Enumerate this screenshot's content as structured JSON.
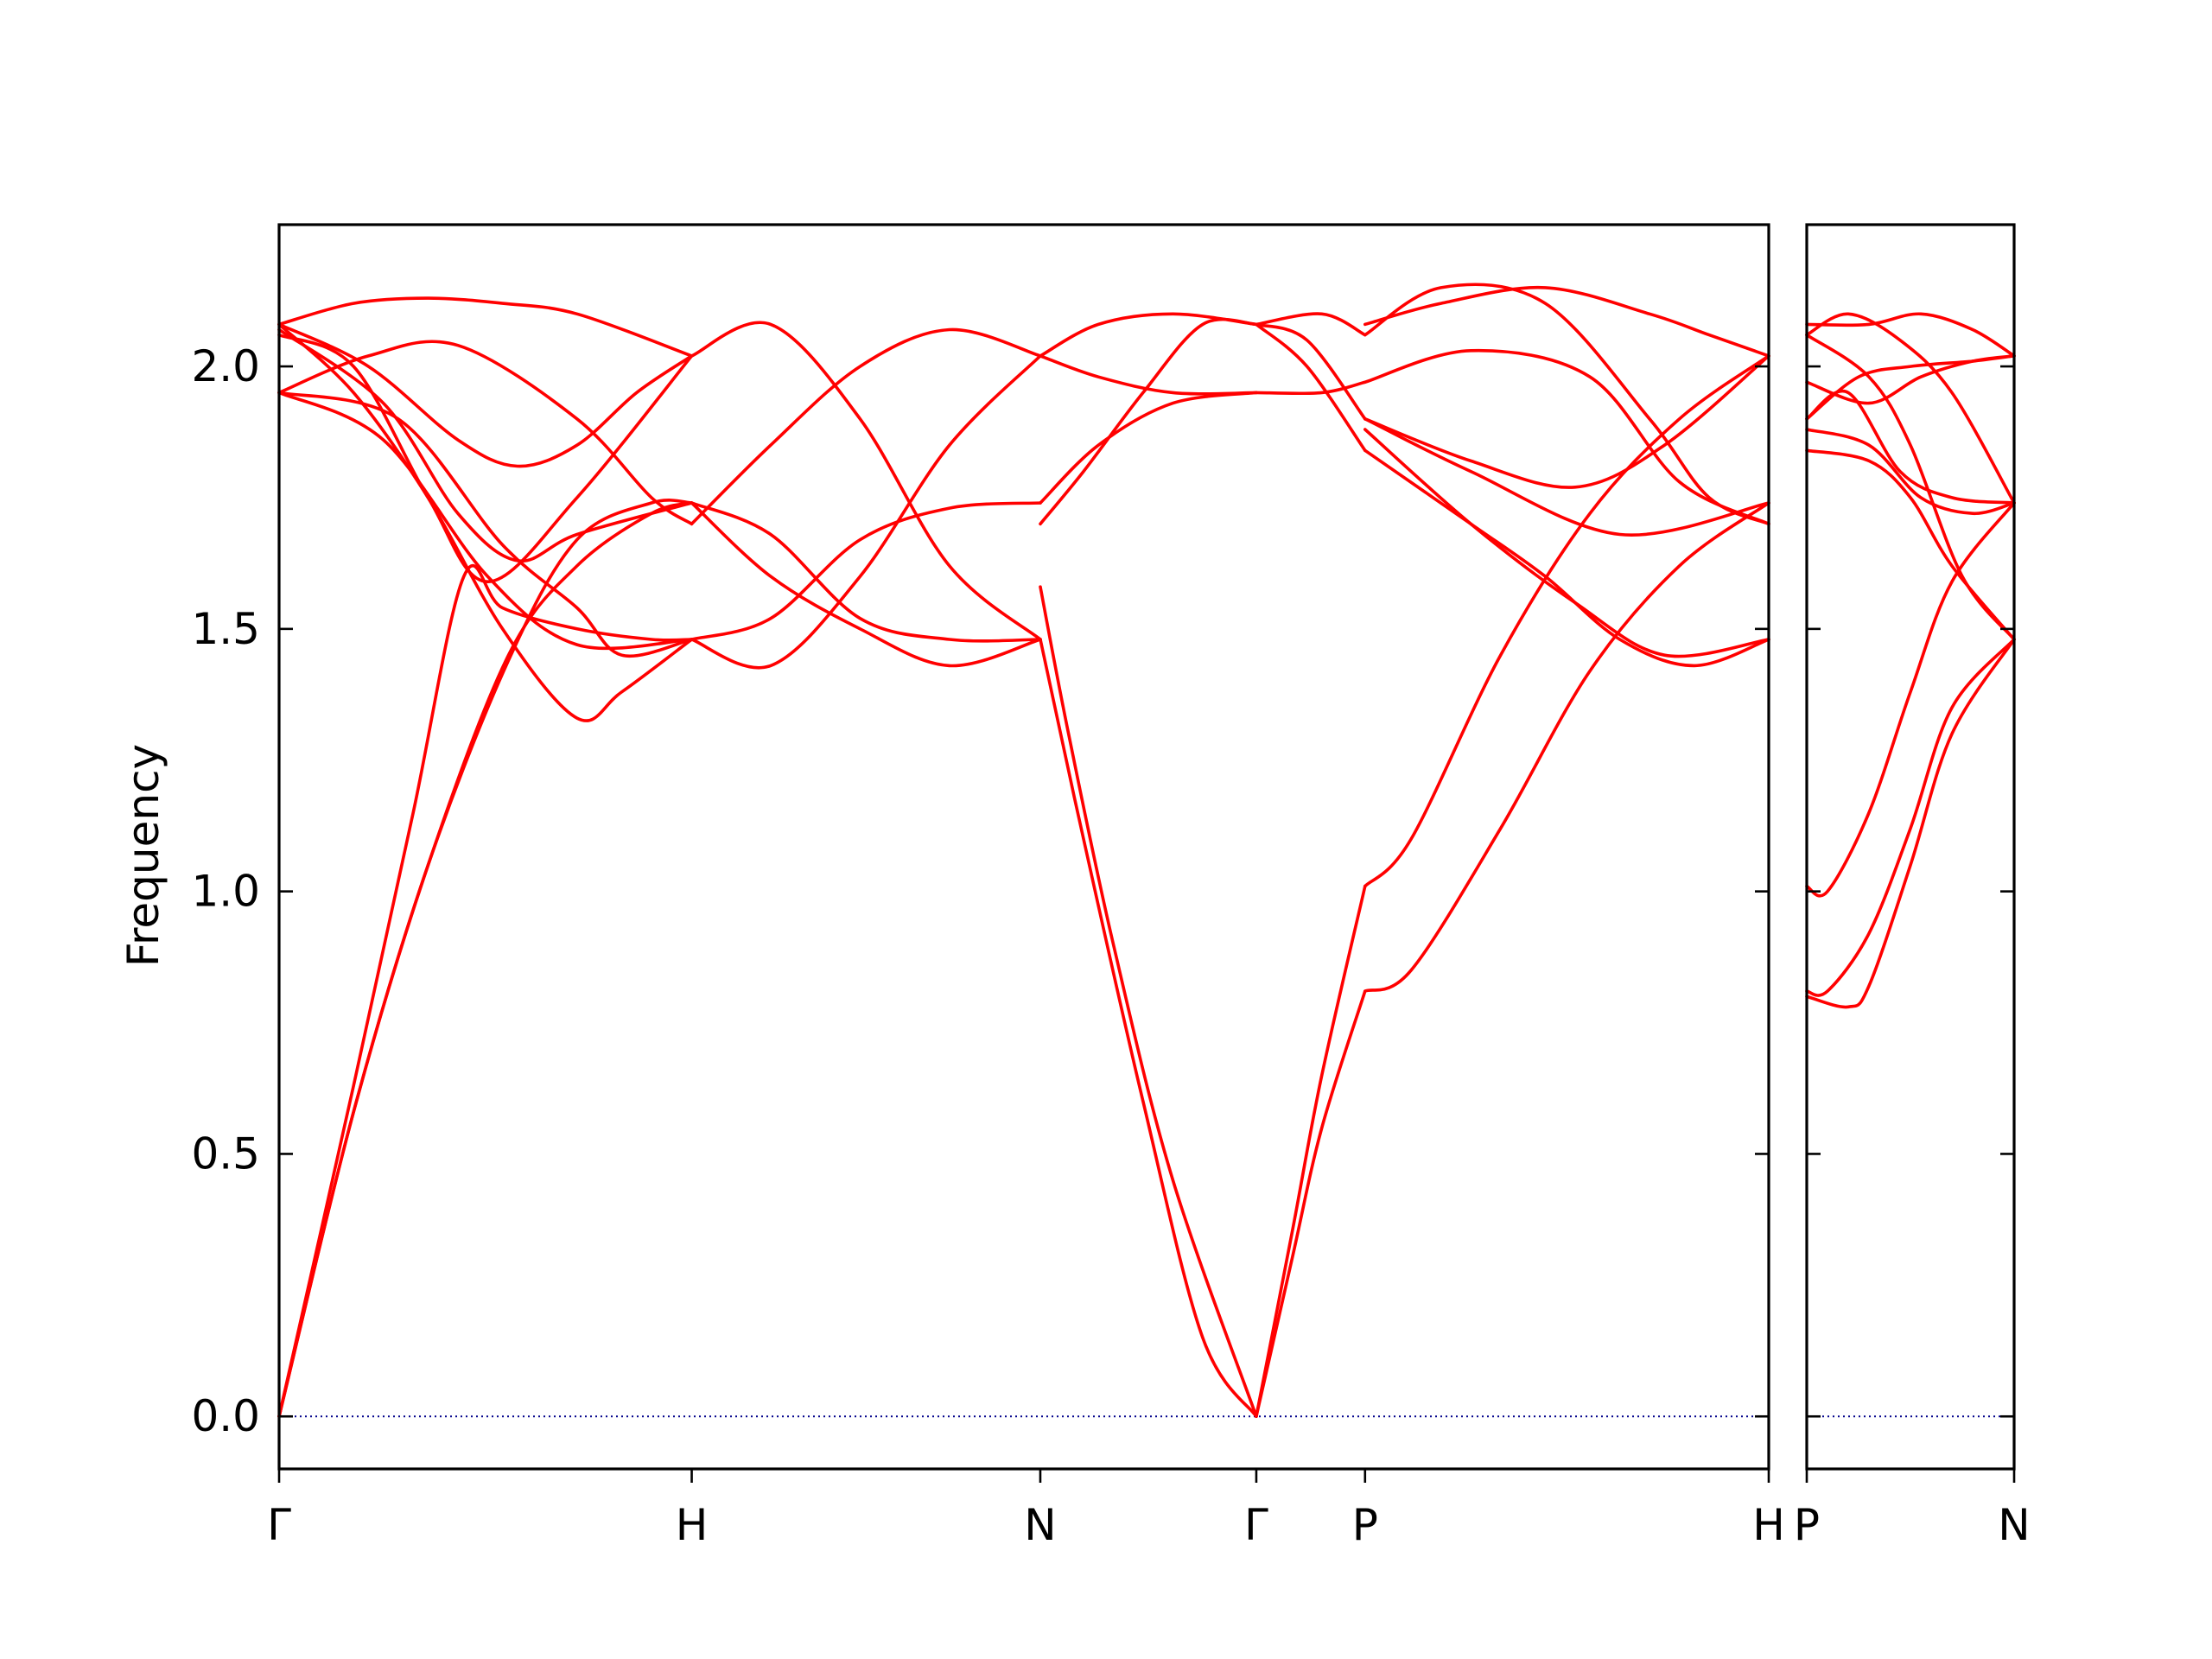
{
  "chart_data": {
    "type": "line",
    "ylabel": "Frequency",
    "ylim": [
      -0.1,
      2.27
    ],
    "yticks": [
      "0.0",
      "0.5",
      "1.0",
      "1.5",
      "2.0"
    ],
    "colors": {
      "bands": "#ff0000",
      "zero": "#00008b"
    },
    "panels": [
      {
        "xlim": [
          0,
          1
        ],
        "ticks": [
          {
            "x": 0.0,
            "label": "Γ"
          },
          {
            "x": 0.277,
            "label": "H"
          },
          {
            "x": 0.511,
            "label": "N"
          },
          {
            "x": 0.656,
            "label": "Γ"
          },
          {
            "x": 0.729,
            "label": "P"
          },
          {
            "x": 1.0,
            "label": "H"
          }
        ],
        "series": [
          {
            "x": [
              0,
              0.05,
              0.09,
              0.124,
              0.15,
              0.2,
              0.25,
              0.277
            ],
            "y": [
              0,
              0.63,
              1.15,
              1.6,
              1.54,
              1.5,
              1.48,
              1.48
            ]
          },
          {
            "x": [
              0,
              0.05,
              0.1,
              0.154,
              0.2,
              0.25,
              0.277
            ],
            "y": [
              0,
              0.58,
              1.05,
              1.45,
              1.62,
              1.72,
              1.74
            ]
          },
          {
            "x": [
              0,
              0.05,
              0.1,
              0.154,
              0.2,
              0.25,
              0.277
            ],
            "y": [
              0,
              0.58,
              1.05,
              1.44,
              1.67,
              1.74,
              1.74
            ]
          },
          {
            "x": [
              0,
              0.05,
              0.1,
              0.15,
              0.2,
              0.277
            ],
            "y": [
              2.08,
              2.12,
              2.13,
              2.12,
              2.1,
              2.02
            ]
          },
          {
            "x": [
              0,
              0.06,
              0.12,
              0.2,
              0.25,
              0.277
            ],
            "y": [
              1.95,
              2.02,
              2.04,
              1.9,
              1.75,
              1.7
            ]
          },
          {
            "x": [
              0,
              0.06,
              0.12,
              0.16,
              0.2,
              0.24,
              0.277
            ],
            "y": [
              2.08,
              2.0,
              1.86,
              1.81,
              1.85,
              1.95,
              2.02
            ]
          },
          {
            "x": [
              0,
              0.07,
              0.12,
              0.16,
              0.2,
              0.277
            ],
            "y": [
              2.07,
              1.93,
              1.72,
              1.63,
              1.68,
              1.74
            ]
          },
          {
            "x": [
              0,
              0.05,
              0.1,
              0.15,
              0.2,
              0.23,
              0.277
            ],
            "y": [
              2.08,
              1.95,
              1.75,
              1.5,
              1.33,
              1.38,
              1.48
            ]
          },
          {
            "x": [
              0,
              0.07,
              0.14,
              0.2,
              0.277
            ],
            "y": [
              1.95,
              1.86,
              1.6,
              1.47,
              1.48
            ]
          },
          {
            "x": [
              0,
              0.08,
              0.15,
              0.2,
              0.23,
              0.277
            ],
            "y": [
              1.95,
              1.9,
              1.66,
              1.54,
              1.45,
              1.48
            ]
          },
          {
            "x": [
              0,
              0.05,
              0.1,
              0.14,
              0.2,
              0.277
            ],
            "y": [
              2.06,
              2.0,
              1.75,
              1.59,
              1.75,
              2.02
            ]
          },
          {
            "x": [
              0.277,
              0.33,
              0.39,
              0.45,
              0.511
            ],
            "y": [
              1.48,
              1.43,
              1.6,
              1.85,
              2.02
            ]
          },
          {
            "x": [
              0.277,
              0.33,
              0.39,
              0.45,
              0.511
            ],
            "y": [
              2.02,
              2.08,
              1.9,
              1.62,
              1.48
            ]
          },
          {
            "x": [
              0.277,
              0.33,
              0.39,
              0.45,
              0.511
            ],
            "y": [
              1.7,
              1.85,
              2.0,
              2.07,
              2.02
            ]
          },
          {
            "x": [
              0.277,
              0.33,
              0.39,
              0.45,
              0.511
            ],
            "y": [
              1.74,
              1.6,
              1.5,
              1.43,
              1.48
            ]
          },
          {
            "x": [
              0.277,
              0.33,
              0.39,
              0.45,
              0.511
            ],
            "y": [
              1.48,
              1.52,
              1.67,
              1.73,
              1.74
            ]
          },
          {
            "x": [
              0.277,
              0.33,
              0.39,
              0.45,
              0.511
            ],
            "y": [
              1.74,
              1.68,
              1.52,
              1.48,
              1.48
            ]
          },
          {
            "x": [
              0.511,
              0.54,
              0.58,
              0.62,
              0.656
            ],
            "y": [
              1.48,
              1.1,
              0.6,
              0.15,
              0
            ]
          },
          {
            "x": [
              0.511,
              0.53,
              0.56,
              0.6,
              0.656
            ],
            "y": [
              1.58,
              1.3,
              0.9,
              0.45,
              0
            ]
          },
          {
            "x": [
              0.511,
              0.54,
              0.58,
              0.62,
              0.656
            ],
            "y": [
              1.7,
              1.8,
              1.95,
              2.08,
              2.08
            ]
          },
          {
            "x": [
              0.511,
              0.55,
              0.6,
              0.656
            ],
            "y": [
              1.74,
              1.85,
              1.93,
              1.95
            ]
          },
          {
            "x": [
              0.511,
              0.55,
              0.6,
              0.656
            ],
            "y": [
              2.02,
              2.08,
              2.1,
              2.08
            ]
          },
          {
            "x": [
              0.511,
              0.55,
              0.6,
              0.656
            ],
            "y": [
              2.02,
              1.98,
              1.95,
              1.95
            ]
          },
          {
            "x": [
              0.656,
              0.68,
              0.7,
              0.729
            ],
            "y": [
              0,
              0.3,
              0.55,
              0.81
            ]
          },
          {
            "x": [
              0.656,
              0.68,
              0.7,
              0.729
            ],
            "y": [
              0,
              0.35,
              0.65,
              1.01
            ]
          },
          {
            "x": [
              0.656,
              0.69,
              0.729
            ],
            "y": [
              2.08,
              2.05,
              1.9
            ]
          },
          {
            "x": [
              0.656,
              0.69,
              0.729
            ],
            "y": [
              2.08,
              2.0,
              1.84
            ]
          },
          {
            "x": [
              0.656,
              0.7,
              0.729
            ],
            "y": [
              2.08,
              2.1,
              2.06
            ]
          },
          {
            "x": [
              0.656,
              0.7,
              0.729
            ],
            "y": [
              1.95,
              1.95,
              1.97
            ]
          },
          {
            "x": [
              0.729,
              0.76,
              0.82,
              0.88,
              0.94,
              1.0
            ],
            "y": [
              0.81,
              0.85,
              1.12,
              1.42,
              1.62,
              1.74
            ]
          },
          {
            "x": [
              0.729,
              0.76,
              0.82,
              0.88,
              0.94,
              1.0
            ],
            "y": [
              1.01,
              1.1,
              1.45,
              1.72,
              1.9,
              2.02
            ]
          },
          {
            "x": [
              0.729,
              0.8,
              0.85,
              0.9,
              0.95,
              1.0
            ],
            "y": [
              1.84,
              1.7,
              1.6,
              1.48,
              1.43,
              1.48
            ]
          },
          {
            "x": [
              0.729,
              0.8,
              0.87,
              0.93,
              1.0
            ],
            "y": [
              1.88,
              1.7,
              1.55,
              1.45,
              1.48
            ]
          },
          {
            "x": [
              0.729,
              0.78,
              0.85,
              0.92,
              0.96,
              1.0
            ],
            "y": [
              2.06,
              2.15,
              2.12,
              1.9,
              1.75,
              1.7
            ]
          },
          {
            "x": [
              0.729,
              0.78,
              0.85,
              0.92,
              0.96,
              1.0
            ],
            "y": [
              2.08,
              2.12,
              2.15,
              2.1,
              2.06,
              2.02
            ]
          },
          {
            "x": [
              0.729,
              0.8,
              0.88,
              0.94,
              1.0
            ],
            "y": [
              1.97,
              2.03,
              1.98,
              1.78,
              1.7
            ]
          },
          {
            "x": [
              0.729,
              0.8,
              0.87,
              0.93,
              1.0
            ],
            "y": [
              1.9,
              1.82,
              1.77,
              1.85,
              2.02
            ]
          },
          {
            "x": [
              0.729,
              0.8,
              0.9,
              1.0
            ],
            "y": [
              1.9,
              1.8,
              1.68,
              1.74
            ]
          }
        ]
      },
      {
        "xlim": [
          0,
          1
        ],
        "ticks": [
          {
            "x": 0.0,
            "label": "P"
          },
          {
            "x": 1.0,
            "label": "N"
          }
        ],
        "series": [
          {
            "x": [
              0,
              0.1,
              0.3,
              0.5,
              0.7,
              1.0
            ],
            "y": [
              1.01,
              1.0,
              1.15,
              1.38,
              1.59,
              1.74
            ]
          },
          {
            "x": [
              0,
              0.1,
              0.3,
              0.5,
              0.7,
              1.0
            ],
            "y": [
              0.81,
              0.81,
              0.92,
              1.12,
              1.35,
              1.48
            ]
          },
          {
            "x": [
              0,
              0.2,
              0.3,
              0.5,
              0.7,
              1.0
            ],
            "y": [
              0.8,
              0.78,
              0.82,
              1.05,
              1.3,
              1.48
            ]
          },
          {
            "x": [
              0,
              0.3,
              0.5,
              0.7,
              1.0
            ],
            "y": [
              1.84,
              1.82,
              1.75,
              1.62,
              1.48
            ]
          },
          {
            "x": [
              0,
              0.3,
              0.55,
              0.8,
              1.0
            ],
            "y": [
              1.88,
              1.85,
              1.75,
              1.72,
              1.74
            ]
          },
          {
            "x": [
              0,
              0.2,
              0.45,
              0.7,
              1.0
            ],
            "y": [
              2.06,
              2.1,
              2.05,
              1.95,
              1.74
            ]
          },
          {
            "x": [
              0,
              0.3,
              0.55,
              0.8,
              1.0
            ],
            "y": [
              2.08,
              2.08,
              2.1,
              2.07,
              2.02
            ]
          },
          {
            "x": [
              0,
              0.3,
              0.55,
              0.8,
              1.0
            ],
            "y": [
              1.97,
              1.93,
              1.98,
              2.01,
              2.02
            ]
          },
          {
            "x": [
              0,
              0.2,
              0.45,
              0.7,
              1.0
            ],
            "y": [
              1.9,
              1.95,
              1.8,
              1.75,
              1.74
            ]
          },
          {
            "x": [
              0,
              0.25,
              0.5,
              0.8,
              1.0
            ],
            "y": [
              1.9,
              1.98,
              2.0,
              2.01,
              2.02
            ]
          },
          {
            "x": [
              0,
              0.3,
              0.5,
              0.75,
              1.0
            ],
            "y": [
              2.06,
              1.98,
              1.85,
              1.6,
              1.48
            ]
          }
        ]
      }
    ]
  }
}
